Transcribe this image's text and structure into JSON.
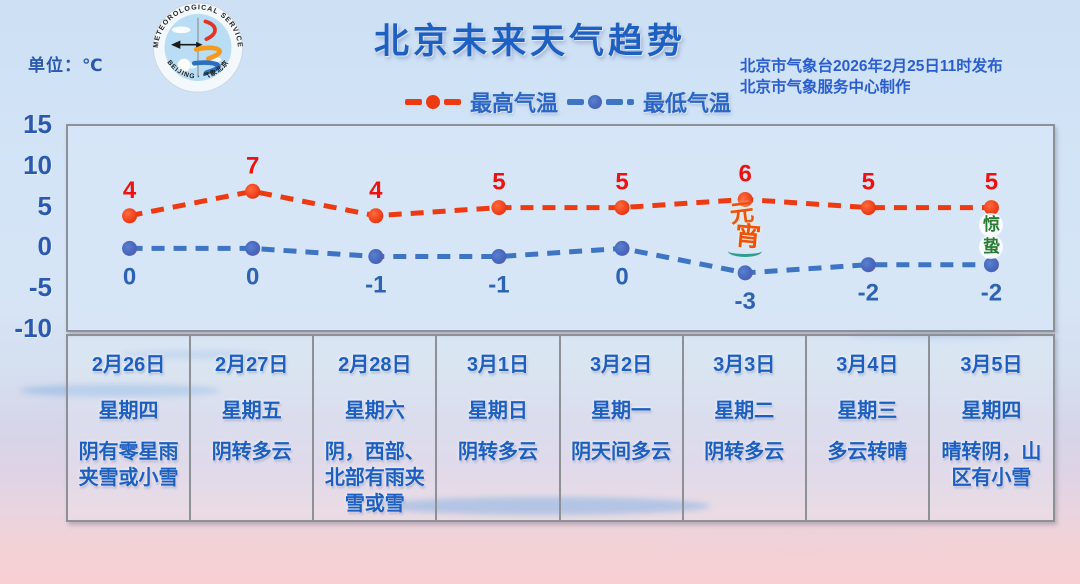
{
  "page": {
    "unit_label": "单位：℃",
    "title": "北京未来天气趋势",
    "issued_line1": "北京市气象台2026年2月25日11时发布",
    "issued_line2": "北京市气象服务中心制作"
  },
  "logo": {
    "arc_top": "METEOROLOGICAL SERVICE",
    "arc_bottom": "BEIJING · 气象北京"
  },
  "legend": [
    {
      "label": "最高气温",
      "color": "#ee3a11"
    },
    {
      "label": "最低气温",
      "color": "#3d74c4"
    }
  ],
  "chart_data": {
    "type": "line",
    "x": [
      "2月26日",
      "2月27日",
      "2月28日",
      "3月1日",
      "3月2日",
      "3月3日",
      "3月4日",
      "3月5日"
    ],
    "series": [
      {
        "name": "最高气温",
        "values": [
          4,
          7,
          4,
          5,
          5,
          6,
          5,
          5
        ],
        "color": "#ee3a11",
        "label_color": "#ef1010"
      },
      {
        "name": "最低气温",
        "values": [
          0,
          0,
          -1,
          -1,
          0,
          -3,
          -2,
          -2
        ],
        "color": "#3d74c4",
        "label_color": "#2d63b5"
      }
    ],
    "ylim": [
      -10,
      15
    ],
    "yticks": [
      15,
      10,
      5,
      0,
      -5,
      -10
    ],
    "grid": false,
    "line_style": "dashed",
    "legend_position": "top-center",
    "annotations": [
      {
        "text": "元宵",
        "x_index": 5,
        "class": "lantern",
        "color": "#ec520e"
      },
      {
        "text": "惊蛰",
        "x_index": 7,
        "class": "solar-term",
        "color": "#2a7d33"
      }
    ]
  },
  "table": {
    "columns": [
      {
        "date": "2月26日",
        "weekday": "星期四",
        "weather": "阴有零星雨夹雪或小雪"
      },
      {
        "date": "2月27日",
        "weekday": "星期五",
        "weather": "阴转多云"
      },
      {
        "date": "2月28日",
        "weekday": "星期六",
        "weather": "阴，西部、北部有雨夹雪或雪"
      },
      {
        "date": "3月1日",
        "weekday": "星期日",
        "weather": "阴转多云"
      },
      {
        "date": "3月2日",
        "weekday": "星期一",
        "weather": "阴天间多云"
      },
      {
        "date": "3月3日",
        "weekday": "星期二",
        "weather": "阴转多云"
      },
      {
        "date": "3月4日",
        "weekday": "星期三",
        "weather": "多云转晴"
      },
      {
        "date": "3月5日",
        "weekday": "星期四",
        "weather": "晴转阴，山区有小雪"
      }
    ]
  }
}
